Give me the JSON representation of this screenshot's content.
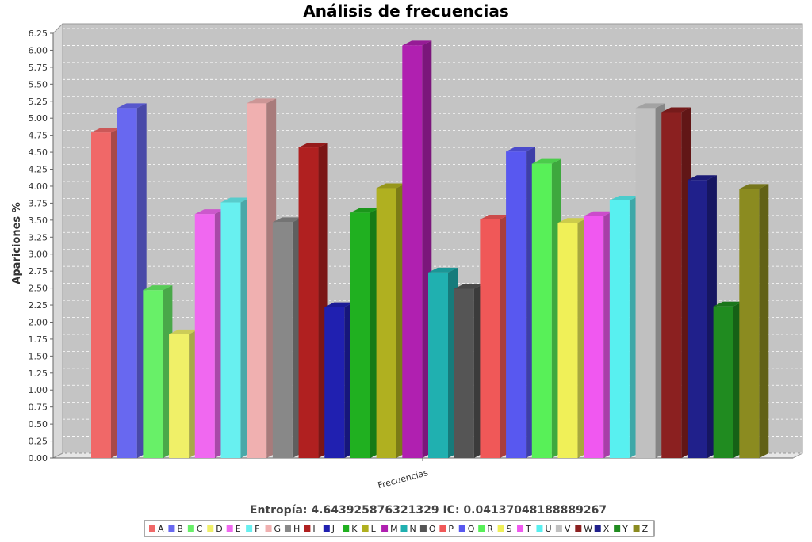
{
  "chart_data": {
    "type": "bar",
    "title": "Análisis de frecuencias",
    "subtitle": "Entropía: 4.643925876321329  IC: 0.04137048188889267",
    "xlabel": "Frecuencias",
    "ylabel": "Apariciones %",
    "ylim": [
      0,
      6.25
    ],
    "yticks": [
      "0.00",
      "0.25",
      "0.50",
      "0.75",
      "1.00",
      "1.25",
      "1.50",
      "1.75",
      "2.00",
      "2.25",
      "2.50",
      "2.75",
      "3.00",
      "3.25",
      "3.50",
      "3.75",
      "4.00",
      "4.25",
      "4.50",
      "4.75",
      "5.00",
      "5.25",
      "5.50",
      "5.75",
      "6.00",
      "6.25"
    ],
    "grid": true,
    "legend_position": "bottom",
    "categories": [
      "Frecuencias"
    ],
    "series": [
      {
        "name": "A",
        "color": "#f06868",
        "values": [
          4.79
        ]
      },
      {
        "name": "B",
        "color": "#6868f0",
        "values": [
          5.15
        ]
      },
      {
        "name": "C",
        "color": "#68f068",
        "values": [
          2.47
        ]
      },
      {
        "name": "D",
        "color": "#f0f068",
        "values": [
          1.82
        ]
      },
      {
        "name": "E",
        "color": "#f068f0",
        "values": [
          3.59
        ]
      },
      {
        "name": "F",
        "color": "#68f0f0",
        "values": [
          3.76
        ]
      },
      {
        "name": "G",
        "color": "#f0b0b0",
        "values": [
          5.22
        ]
      },
      {
        "name": "H",
        "color": "#888888",
        "values": [
          3.47
        ]
      },
      {
        "name": "I",
        "color": "#b02020",
        "values": [
          4.57
        ]
      },
      {
        "name": "J",
        "color": "#2020b0",
        "values": [
          2.22
        ]
      },
      {
        "name": "K",
        "color": "#20b020",
        "values": [
          3.61
        ]
      },
      {
        "name": "L",
        "color": "#b0b020",
        "values": [
          3.97
        ]
      },
      {
        "name": "M",
        "color": "#b020b0",
        "values": [
          6.07
        ]
      },
      {
        "name": "N",
        "color": "#20b0b0",
        "values": [
          2.73
        ]
      },
      {
        "name": "O",
        "color": "#555555",
        "values": [
          2.49
        ]
      },
      {
        "name": "P",
        "color": "#f05858",
        "values": [
          3.51
        ]
      },
      {
        "name": "Q",
        "color": "#5858f0",
        "values": [
          4.51
        ]
      },
      {
        "name": "R",
        "color": "#58f058",
        "values": [
          4.33
        ]
      },
      {
        "name": "S",
        "color": "#f0f058",
        "values": [
          3.46
        ]
      },
      {
        "name": "T",
        "color": "#f058f0",
        "values": [
          3.56
        ]
      },
      {
        "name": "U",
        "color": "#58f0f0",
        "values": [
          3.79
        ]
      },
      {
        "name": "V",
        "color": "#c0c0c0",
        "values": [
          5.15
        ]
      },
      {
        "name": "W",
        "color": "#8b2020",
        "values": [
          5.09
        ]
      },
      {
        "name": "X",
        "color": "#20208b",
        "values": [
          4.09
        ]
      },
      {
        "name": "Y",
        "color": "#208b20",
        "values": [
          2.23
        ]
      },
      {
        "name": "Z",
        "color": "#8b8b20",
        "values": [
          3.96
        ]
      }
    ]
  }
}
